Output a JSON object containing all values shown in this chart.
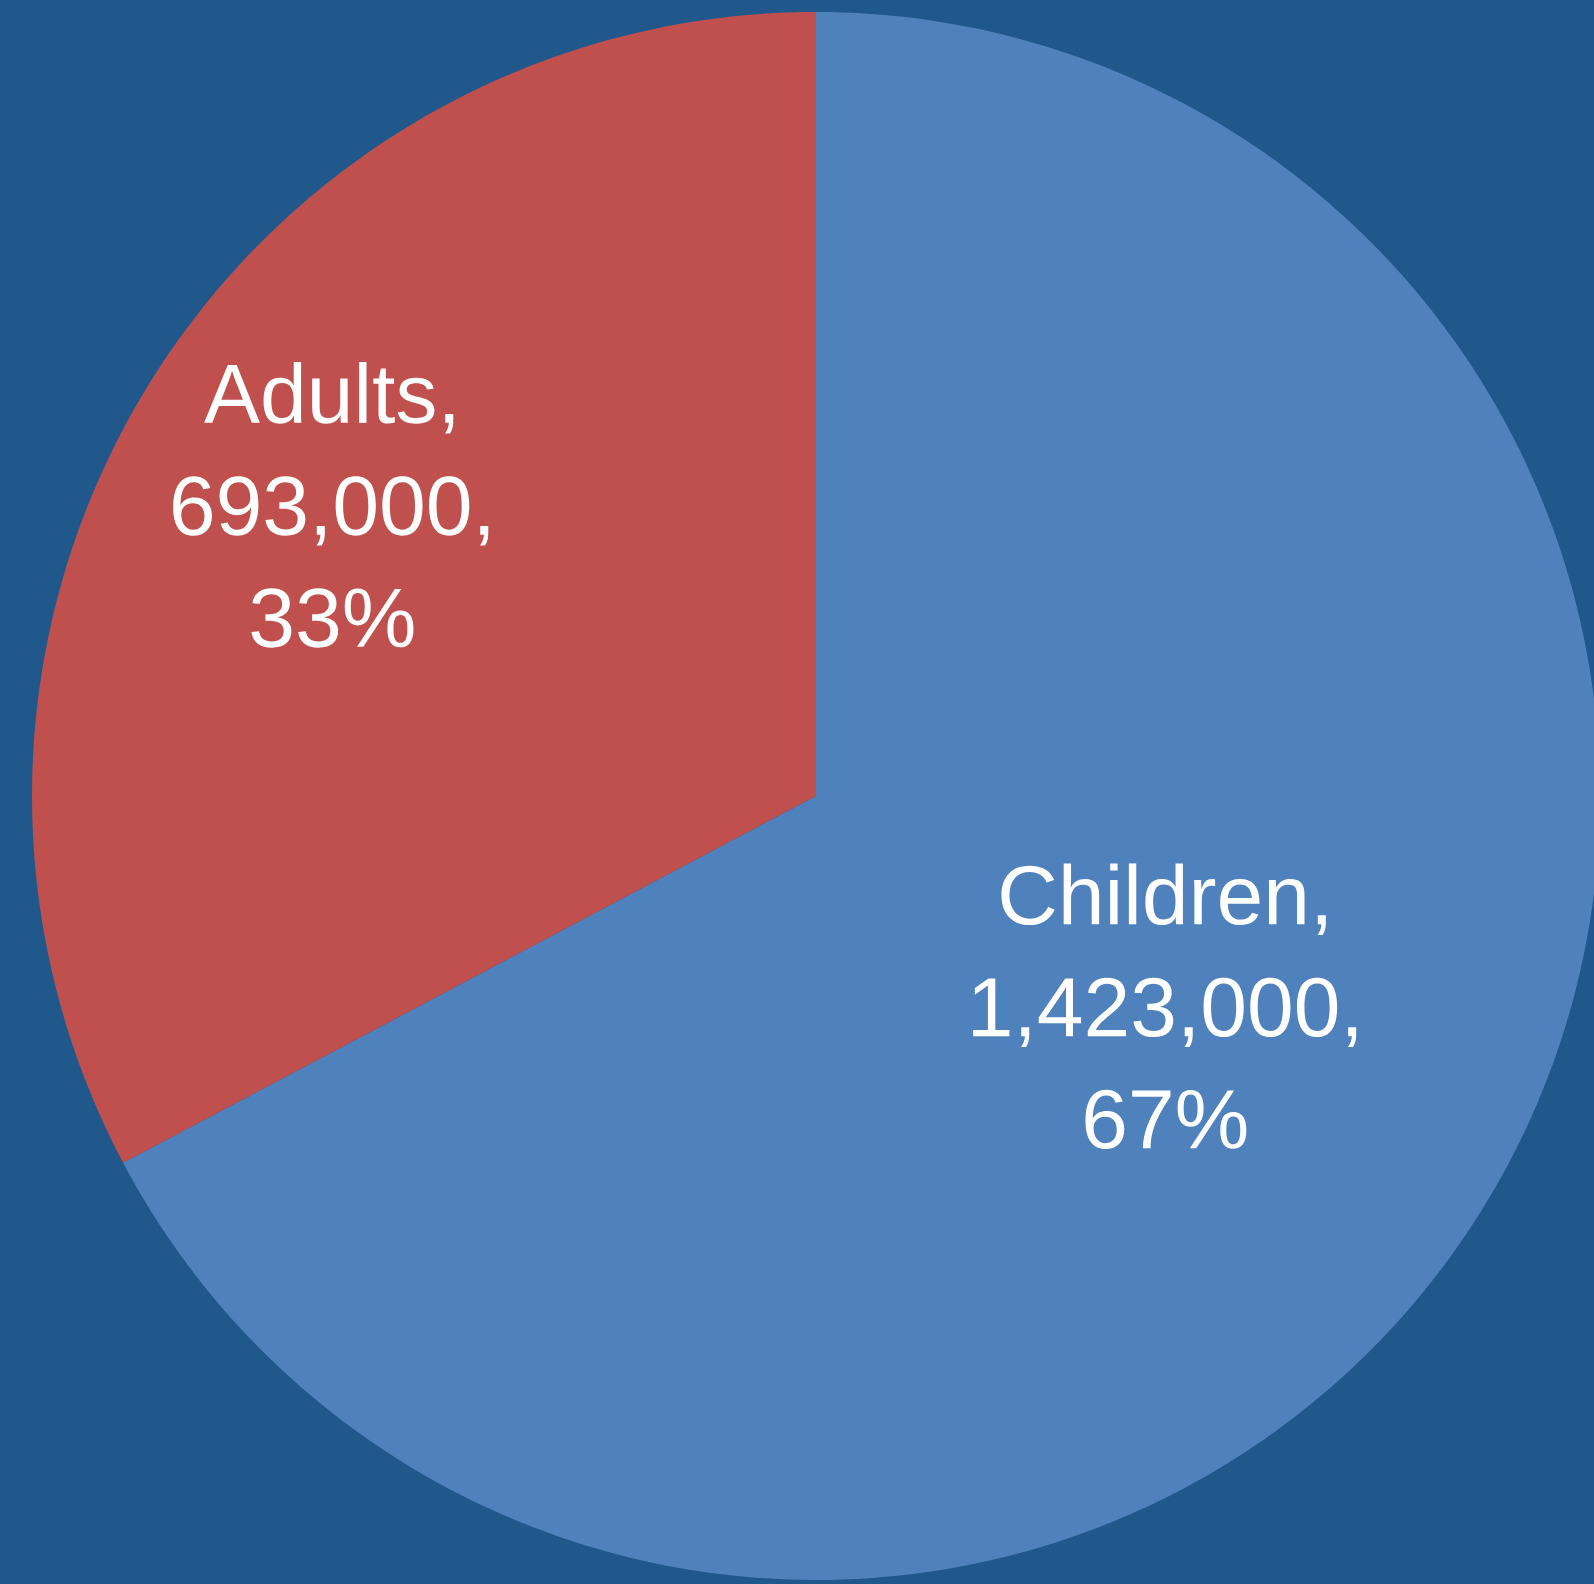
{
  "chart_data": {
    "type": "pie",
    "categories": [
      "Children",
      "Adults"
    ],
    "values": [
      1423000,
      693000
    ],
    "value_labels": [
      ", 1,423,000, 67%",
      ", 693,000, 33%"
    ],
    "colors": [
      "#4f81bd",
      "#c0504d"
    ]
  }
}
